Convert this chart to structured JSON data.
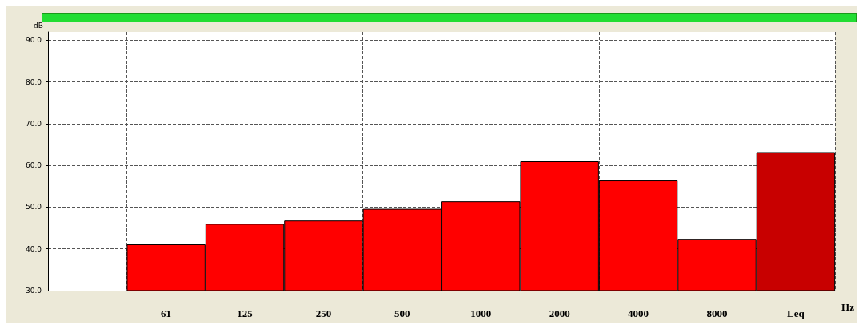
{
  "chart_data": {
    "type": "bar",
    "ylabel": "dB",
    "xlabel": "Hz",
    "categories": [
      null,
      "61",
      "125",
      "250",
      "500",
      "1000",
      "2000",
      "4000",
      "8000",
      "Leq"
    ],
    "values": [
      null,
      41.1,
      46.0,
      46.8,
      49.6,
      51.4,
      61.0,
      56.4,
      42.4,
      63.2
    ],
    "colors": [
      "#ff0000",
      "#ff0000",
      "#ff0000",
      "#ff0000",
      "#ff0000",
      "#ff0000",
      "#ff0000",
      "#ff0000",
      "#ff0000",
      "#c80000"
    ],
    "ylim": [
      30,
      92
    ],
    "yticks": [
      {
        "value": 30,
        "label": "30.0"
      },
      {
        "value": 40,
        "label": "40.0"
      },
      {
        "value": 50,
        "label": "50.0"
      },
      {
        "value": 60,
        "label": "60.0"
      },
      {
        "value": 70,
        "label": "70.0"
      },
      {
        "value": 80,
        "label": "80.0"
      },
      {
        "value": 90,
        "label": "90.0"
      }
    ],
    "grid": true
  }
}
